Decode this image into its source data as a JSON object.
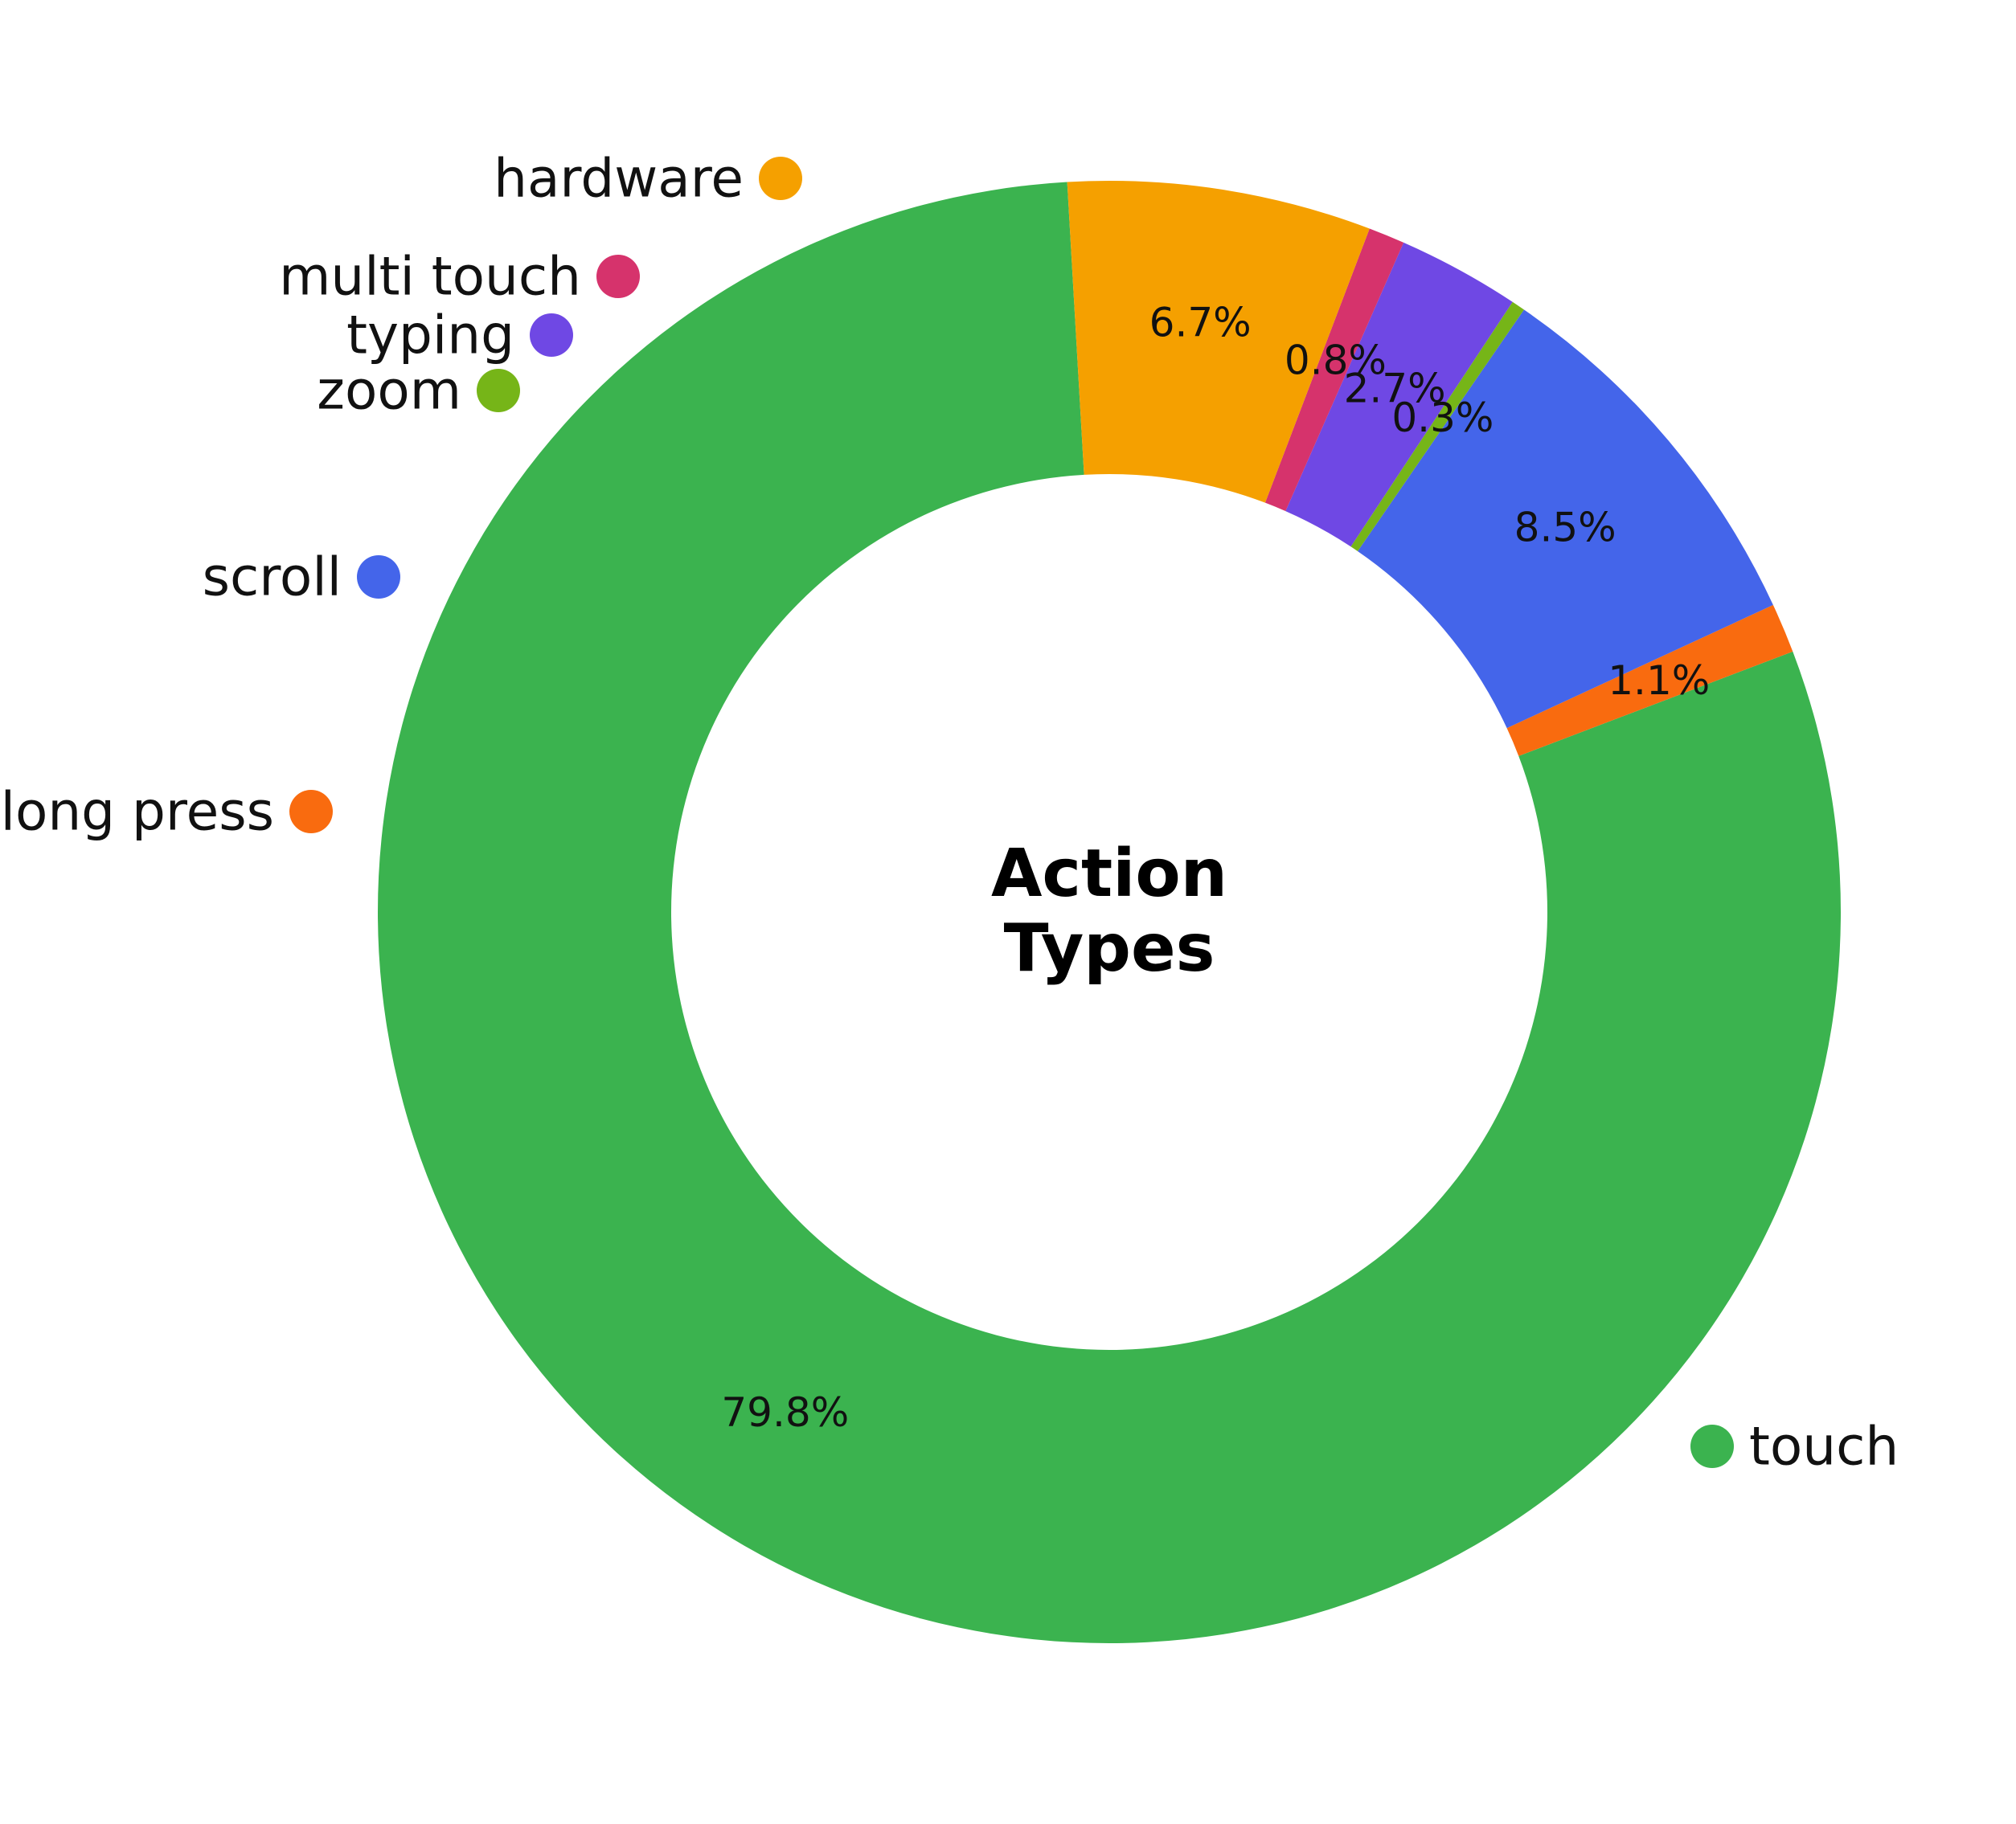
{
  "chart_data": {
    "type": "pie",
    "title_lines": [
      "Action",
      "Types"
    ],
    "slices": [
      {
        "label": "touch",
        "value": 79.8,
        "display": "79.8%",
        "color": "#3bb34f"
      },
      {
        "label": "long press",
        "value": 1.1,
        "display": "1.1%",
        "color": "#f96b0f"
      },
      {
        "label": "scroll",
        "value": 8.5,
        "display": "8.5%",
        "color": "#4465ea"
      },
      {
        "label": "zoom",
        "value": 0.3,
        "display": "0.3%",
        "color": "#76b518"
      },
      {
        "label": "typing",
        "value": 2.7,
        "display": "2.7%",
        "color": "#6f48e4"
      },
      {
        "label": "multi touch",
        "value": 0.8,
        "display": "0.8%",
        "color": "#d6336c"
      },
      {
        "label": "hardware",
        "value": 6.7,
        "display": "6.7%",
        "color": "#f5a000"
      }
    ]
  }
}
